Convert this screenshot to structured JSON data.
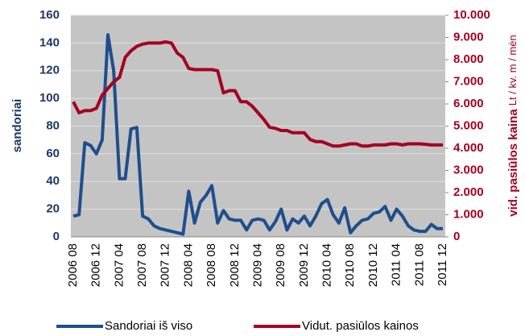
{
  "chart_data": {
    "type": "line",
    "y_label": "sandoriai",
    "y2_label": [
      "vid. pasiūlos kaina",
      "Lt / kv. m / mėn"
    ],
    "categories": [
      "2006 08",
      null,
      null,
      null,
      "2006 12",
      null,
      null,
      null,
      "2007 04",
      null,
      null,
      null,
      "2007 08",
      null,
      null,
      null,
      "2007 12",
      null,
      null,
      null,
      "2008 04",
      null,
      null,
      null,
      "2008 08",
      null,
      null,
      null,
      "2008 12",
      null,
      null,
      null,
      "2009 04",
      null,
      null,
      null,
      "2009 08",
      null,
      null,
      null,
      "2009 12",
      null,
      null,
      null,
      "2010 04",
      null,
      null,
      null,
      "2010 08",
      null,
      null,
      null,
      "2010 12",
      null,
      null,
      null,
      "2011 04",
      null,
      null,
      null,
      "2011 08",
      null,
      null,
      null,
      "2011 12"
    ],
    "series": [
      {
        "name": "Sandoriai iš viso",
        "color": "#1f4e8c",
        "axis": "y",
        "values": [
          15,
          16,
          68,
          66,
          60,
          70,
          146,
          120,
          42,
          42,
          78,
          79,
          15,
          13,
          8,
          6,
          5,
          4,
          3,
          2,
          33,
          10,
          25,
          30,
          37,
          10,
          19,
          13,
          12,
          12,
          5,
          12,
          13,
          12,
          5,
          11,
          20,
          5,
          13,
          10,
          15,
          8,
          15,
          24,
          27,
          16,
          10,
          21,
          3,
          8,
          12,
          13,
          17,
          18,
          22,
          12,
          20,
          15,
          8,
          5,
          4,
          4,
          9,
          6,
          6
        ]
      },
      {
        "name": "Vidut. pasiūlos kainos",
        "color": "#a50021",
        "axis": "y2",
        "values": [
          6100,
          5600,
          5700,
          5700,
          5800,
          6400,
          6700,
          7000,
          7200,
          8100,
          8400,
          8600,
          8700,
          8750,
          8750,
          8750,
          8800,
          8750,
          8300,
          8100,
          7600,
          7550,
          7550,
          7550,
          7550,
          7500,
          6500,
          6600,
          6600,
          6100,
          6100,
          5900,
          5600,
          5300,
          4950,
          4900,
          4800,
          4800,
          4700,
          4700,
          4700,
          4400,
          4300,
          4300,
          4200,
          4100,
          4100,
          4150,
          4200,
          4200,
          4100,
          4100,
          4150,
          4150,
          4150,
          4200,
          4200,
          4150,
          4200,
          4200,
          4200,
          4180,
          4150,
          4150,
          4150
        ]
      }
    ],
    "ylim": [
      0,
      160
    ],
    "yticks": [
      0,
      20,
      40,
      60,
      80,
      100,
      120,
      140,
      160
    ],
    "y2lim": [
      0,
      10000
    ],
    "y2ticks": [
      0,
      {
        "value": 1000,
        "label": "1.000"
      },
      {
        "value": 2000,
        "label": "2.000"
      },
      {
        "value": 3000,
        "label": "3.000"
      },
      {
        "value": 4000,
        "label": "4.000"
      },
      {
        "value": 5000,
        "label": "5.000"
      },
      {
        "value": 6000,
        "label": "6.000"
      },
      {
        "value": 7000,
        "label": "7.000"
      },
      {
        "value": 8000,
        "label": "8.000"
      },
      {
        "value": 9000,
        "label": "9.000"
      },
      {
        "value": 10000,
        "label": "10.000"
      }
    ],
    "grid": true,
    "legend": "bottom"
  }
}
